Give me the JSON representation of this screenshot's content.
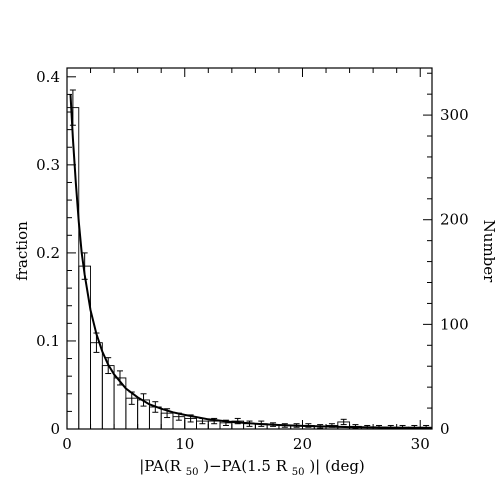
{
  "chart_data": {
    "type": "bar",
    "title": "",
    "xlabel_parts": [
      "|PA(R",
      "50",
      ")−PA(1.5 R",
      "50",
      ")| (deg)"
    ],
    "ylabel": "fraction",
    "y2label": "Number",
    "xlim": [
      0,
      31
    ],
    "ylim": [
      0,
      0.41
    ],
    "y2lim": [
      0,
      345
    ],
    "xticks": [
      0,
      10,
      20,
      30
    ],
    "yticks": [
      0,
      0.1,
      0.2,
      0.3,
      0.4
    ],
    "y2ticks": [
      0,
      100,
      200,
      300
    ],
    "bin_width": 1,
    "bin_starts": [
      0,
      1,
      2,
      3,
      4,
      5,
      6,
      7,
      8,
      9,
      10,
      11,
      12,
      13,
      14,
      15,
      16,
      17,
      18,
      19,
      20,
      21,
      22,
      23,
      24,
      25,
      26,
      27,
      28,
      29,
      30
    ],
    "values": [
      0.365,
      0.185,
      0.098,
      0.072,
      0.058,
      0.035,
      0.033,
      0.025,
      0.018,
      0.014,
      0.012,
      0.009,
      0.009,
      0.007,
      0.009,
      0.006,
      0.006,
      0.005,
      0.004,
      0.004,
      0.004,
      0.003,
      0.004,
      0.008,
      0.003,
      0.002,
      0.002,
      0.002,
      0.002,
      0.002,
      0.002
    ],
    "errors": [
      0.02,
      0.015,
      0.011,
      0.009,
      0.008,
      0.007,
      0.007,
      0.006,
      0.005,
      0.004,
      0.004,
      0.003,
      0.003,
      0.003,
      0.003,
      0.003,
      0.003,
      0.002,
      0.002,
      0.002,
      0.002,
      0.002,
      0.002,
      0.003,
      0.002,
      0.002,
      0.002,
      0.002,
      0.002,
      0.002,
      0.002
    ],
    "fit_curve": {
      "x": [
        0.3,
        0.5,
        0.75,
        1,
        1.25,
        1.5,
        2,
        2.5,
        3,
        3.5,
        4,
        5,
        6,
        7,
        8,
        9,
        10,
        12,
        14,
        16,
        18,
        20,
        22,
        24,
        26,
        28,
        30,
        31
      ],
      "y": [
        0.38,
        0.33,
        0.28,
        0.235,
        0.2,
        0.175,
        0.135,
        0.108,
        0.088,
        0.073,
        0.062,
        0.046,
        0.036,
        0.028,
        0.023,
        0.019,
        0.016,
        0.011,
        0.008,
        0.006,
        0.0045,
        0.0035,
        0.0028,
        0.0022,
        0.0018,
        0.0015,
        0.0012,
        0.0011
      ]
    },
    "grid": false,
    "legend": "none"
  }
}
